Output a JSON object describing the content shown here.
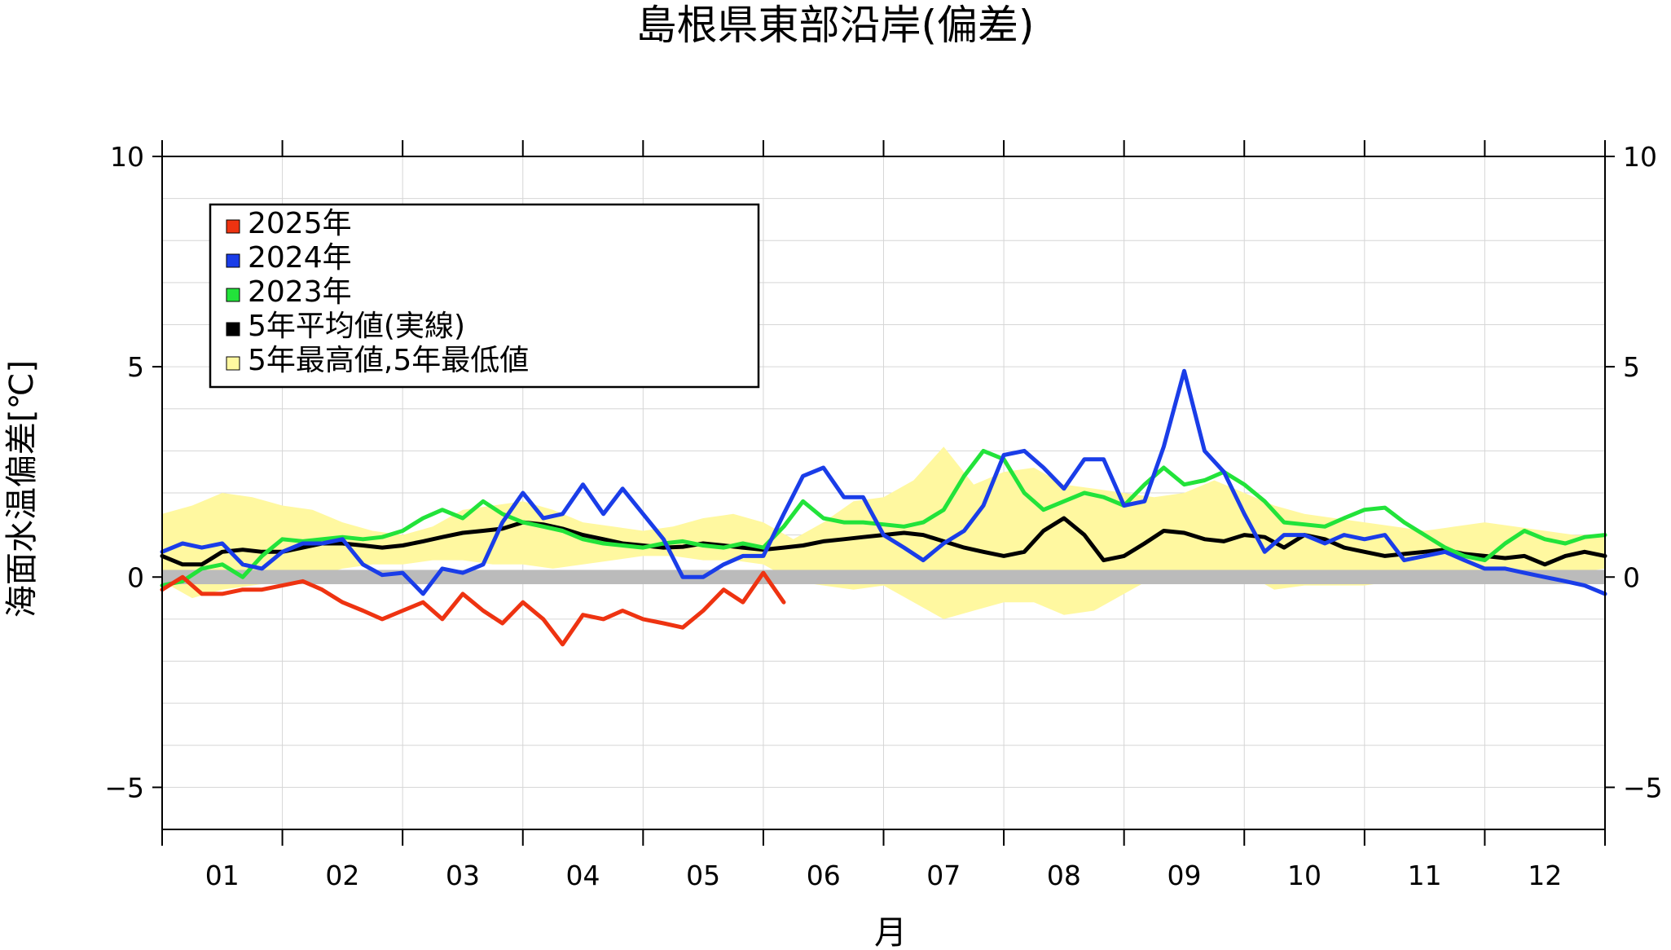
{
  "chart_data": {
    "type": "line",
    "title": "島根県東部沿岸(偏差)",
    "xlabel": "月",
    "ylabel": "海面水温偏差[℃]",
    "ylim": [
      -6,
      10
    ],
    "xlim": [
      0,
      12
    ],
    "y_ticks": [
      -5,
      0,
      5,
      10
    ],
    "y_tick_labels": [
      "−5",
      "0",
      "5",
      "10"
    ],
    "x_ticks": [
      "01",
      "02",
      "03",
      "04",
      "05",
      "06",
      "07",
      "08",
      "09",
      "10",
      "11",
      "12"
    ],
    "grid": true,
    "legend_placement": "top-left",
    "legend": [
      {
        "label": "2025年",
        "color": "#ee3311"
      },
      {
        "label": "2024年",
        "color": "#1a3de8"
      },
      {
        "label": "2023年",
        "color": "#22e33a"
      },
      {
        "label": "5年平均値(実線)",
        "color": "#000000"
      },
      {
        "label": "5年最高値,5年最低値",
        "color": "#fff8a0"
      }
    ],
    "band": {
      "name": "5年最高値,5年最低値",
      "x": [
        0.0,
        0.25,
        0.5,
        0.75,
        1.0,
        1.25,
        1.5,
        1.75,
        2.0,
        2.25,
        2.5,
        2.75,
        3.0,
        3.25,
        3.5,
        3.75,
        4.0,
        4.25,
        4.5,
        4.75,
        5.0,
        5.25,
        5.5,
        5.75,
        6.0,
        6.25,
        6.5,
        6.75,
        7.0,
        7.25,
        7.5,
        7.75,
        8.0,
        8.25,
        8.5,
        8.75,
        9.0,
        9.25,
        9.5,
        9.75,
        10.0,
        10.25,
        10.5,
        10.75,
        11.0,
        11.25,
        11.5,
        11.75,
        12.0
      ],
      "upper": [
        1.5,
        1.7,
        2.0,
        1.9,
        1.7,
        1.6,
        1.3,
        1.1,
        1.0,
        1.2,
        1.6,
        1.7,
        1.8,
        1.6,
        1.3,
        1.2,
        1.1,
        1.2,
        1.4,
        1.5,
        1.3,
        0.9,
        1.3,
        1.8,
        1.9,
        2.3,
        3.1,
        2.2,
        2.5,
        2.6,
        2.2,
        2.1,
        2.0,
        1.9,
        2.0,
        2.3,
        2.0,
        1.7,
        1.5,
        1.4,
        1.3,
        1.2,
        1.1,
        1.2,
        1.3,
        1.2,
        1.1,
        1.0,
        1.0
      ],
      "lower": [
        -0.1,
        -0.5,
        -0.3,
        -0.2,
        -0.1,
        0.0,
        0.2,
        0.3,
        0.3,
        0.4,
        0.4,
        0.3,
        0.3,
        0.2,
        0.3,
        0.4,
        0.5,
        0.5,
        0.4,
        0.4,
        0.3,
        -0.1,
        -0.2,
        -0.3,
        -0.2,
        -0.6,
        -1.0,
        -0.8,
        -0.6,
        -0.6,
        -0.9,
        -0.8,
        -0.4,
        0.0,
        0.1,
        0.0,
        0.1,
        -0.3,
        -0.2,
        -0.2,
        -0.2,
        -0.1,
        0.0,
        0.0,
        0.1,
        0.1,
        0.0,
        0.1,
        0.2
      ]
    },
    "series": [
      {
        "name": "5年平均値(実線)",
        "color": "#000000",
        "x": [
          0.0,
          0.17,
          0.33,
          0.5,
          0.67,
          0.83,
          1.0,
          1.17,
          1.33,
          1.5,
          1.67,
          1.83,
          2.0,
          2.17,
          2.33,
          2.5,
          2.67,
          2.83,
          3.0,
          3.17,
          3.33,
          3.5,
          3.67,
          3.83,
          4.0,
          4.17,
          4.33,
          4.5,
          4.67,
          4.83,
          5.0,
          5.17,
          5.33,
          5.5,
          5.67,
          5.83,
          6.0,
          6.17,
          6.33,
          6.5,
          6.67,
          6.83,
          7.0,
          7.17,
          7.33,
          7.5,
          7.67,
          7.83,
          8.0,
          8.17,
          8.33,
          8.5,
          8.67,
          8.83,
          9.0,
          9.17,
          9.33,
          9.5,
          9.67,
          9.83,
          10.0,
          10.17,
          10.33,
          10.5,
          10.67,
          10.83,
          11.0,
          11.17,
          11.33,
          11.5,
          11.67,
          11.83,
          12.0
        ],
        "y": [
          0.5,
          0.3,
          0.3,
          0.6,
          0.65,
          0.6,
          0.6,
          0.7,
          0.8,
          0.8,
          0.75,
          0.7,
          0.75,
          0.85,
          0.95,
          1.05,
          1.1,
          1.15,
          1.3,
          1.25,
          1.15,
          1.0,
          0.9,
          0.8,
          0.75,
          0.7,
          0.72,
          0.8,
          0.75,
          0.7,
          0.65,
          0.7,
          0.75,
          0.85,
          0.9,
          0.95,
          1.0,
          1.05,
          1.0,
          0.85,
          0.7,
          0.6,
          0.5,
          0.6,
          1.1,
          1.4,
          1.0,
          0.4,
          0.5,
          0.8,
          1.1,
          1.05,
          0.9,
          0.85,
          1.0,
          0.95,
          0.7,
          1.0,
          0.9,
          0.7,
          0.6,
          0.5,
          0.55,
          0.6,
          0.65,
          0.55,
          0.5,
          0.45,
          0.5,
          0.3,
          0.5,
          0.6,
          0.5
        ]
      },
      {
        "name": "2023年",
        "color": "#22e33a",
        "x": [
          0.0,
          0.17,
          0.33,
          0.5,
          0.67,
          0.83,
          1.0,
          1.17,
          1.33,
          1.5,
          1.67,
          1.83,
          2.0,
          2.17,
          2.33,
          2.5,
          2.67,
          2.83,
          3.0,
          3.17,
          3.33,
          3.5,
          3.67,
          3.83,
          4.0,
          4.17,
          4.33,
          4.5,
          4.67,
          4.83,
          5.0,
          5.17,
          5.33,
          5.5,
          5.67,
          5.83,
          6.0,
          6.17,
          6.33,
          6.5,
          6.67,
          6.83,
          7.0,
          7.17,
          7.33,
          7.5,
          7.67,
          7.83,
          8.0,
          8.17,
          8.33,
          8.5,
          8.67,
          8.83,
          9.0,
          9.17,
          9.33,
          9.5,
          9.67,
          9.83,
          10.0,
          10.17,
          10.33,
          10.5,
          10.67,
          10.83,
          11.0,
          11.17,
          11.33,
          11.5,
          11.67,
          11.83,
          12.0
        ],
        "y": [
          -0.2,
          -0.1,
          0.2,
          0.3,
          0.0,
          0.5,
          0.9,
          0.85,
          0.9,
          0.95,
          0.9,
          0.95,
          1.1,
          1.4,
          1.6,
          1.4,
          1.8,
          1.5,
          1.3,
          1.2,
          1.1,
          0.9,
          0.8,
          0.75,
          0.7,
          0.8,
          0.85,
          0.75,
          0.7,
          0.8,
          0.7,
          1.2,
          1.8,
          1.4,
          1.3,
          1.3,
          1.25,
          1.2,
          1.3,
          1.6,
          2.4,
          3.0,
          2.8,
          2.0,
          1.6,
          1.8,
          2.0,
          1.9,
          1.7,
          2.2,
          2.6,
          2.2,
          2.3,
          2.5,
          2.2,
          1.8,
          1.3,
          1.25,
          1.2,
          1.4,
          1.6,
          1.65,
          1.3,
          1.0,
          0.7,
          0.5,
          0.4,
          0.8,
          1.1,
          0.9,
          0.8,
          0.95,
          1.0
        ]
      },
      {
        "name": "2024年",
        "color": "#1a3de8",
        "x": [
          0.0,
          0.17,
          0.33,
          0.5,
          0.67,
          0.83,
          1.0,
          1.17,
          1.33,
          1.5,
          1.67,
          1.83,
          2.0,
          2.17,
          2.33,
          2.5,
          2.67,
          2.83,
          3.0,
          3.17,
          3.33,
          3.5,
          3.67,
          3.83,
          4.0,
          4.17,
          4.33,
          4.5,
          4.67,
          4.83,
          5.0,
          5.17,
          5.33,
          5.5,
          5.67,
          5.83,
          6.0,
          6.17,
          6.33,
          6.5,
          6.67,
          6.83,
          7.0,
          7.17,
          7.33,
          7.5,
          7.67,
          7.83,
          8.0,
          8.17,
          8.33,
          8.5,
          8.67,
          8.83,
          9.0,
          9.17,
          9.33,
          9.5,
          9.67,
          9.83,
          10.0,
          10.17,
          10.33,
          10.5,
          10.67,
          10.83,
          11.0,
          11.17,
          11.33,
          11.5,
          11.67,
          11.83,
          12.0
        ],
        "y": [
          0.6,
          0.8,
          0.7,
          0.8,
          0.3,
          0.2,
          0.6,
          0.8,
          0.8,
          0.9,
          0.3,
          0.05,
          0.1,
          -0.4,
          0.2,
          0.1,
          0.3,
          1.3,
          2.0,
          1.4,
          1.5,
          2.2,
          1.5,
          2.1,
          1.5,
          0.9,
          0.0,
          0.0,
          0.3,
          0.5,
          0.5,
          1.5,
          2.4,
          2.6,
          1.9,
          1.9,
          1.0,
          0.7,
          0.4,
          0.8,
          1.1,
          1.7,
          2.9,
          3.0,
          2.6,
          2.1,
          2.8,
          2.8,
          1.7,
          1.8,
          3.1,
          4.9,
          3.0,
          2.5,
          1.5,
          0.6,
          1.0,
          1.0,
          0.8,
          1.0,
          0.9,
          1.0,
          0.4,
          0.5,
          0.6,
          0.4,
          0.2,
          0.2,
          0.1,
          0.0,
          -0.1,
          -0.2,
          -0.4
        ]
      },
      {
        "name": "2025年",
        "color": "#ee3311",
        "x": [
          0.0,
          0.17,
          0.33,
          0.5,
          0.67,
          0.83,
          1.0,
          1.17,
          1.33,
          1.5,
          1.67,
          1.83,
          2.0,
          2.17,
          2.33,
          2.5,
          2.67,
          2.83,
          3.0,
          3.17,
          3.33,
          3.5,
          3.67,
          3.83,
          4.0,
          4.17,
          4.33,
          4.5,
          4.67,
          4.83,
          5.0,
          5.17
        ],
        "y": [
          -0.3,
          0.0,
          -0.4,
          -0.4,
          -0.3,
          -0.3,
          -0.2,
          -0.1,
          -0.3,
          -0.6,
          -0.8,
          -1.0,
          -0.8,
          -0.6,
          -1.0,
          -0.4,
          -0.8,
          -1.1,
          -0.6,
          -1.0,
          -1.6,
          -0.9,
          -1.0,
          -0.8,
          -1.0,
          -1.1,
          -1.2,
          -0.8,
          -0.3,
          -0.6,
          0.1,
          -0.6
        ]
      }
    ]
  }
}
